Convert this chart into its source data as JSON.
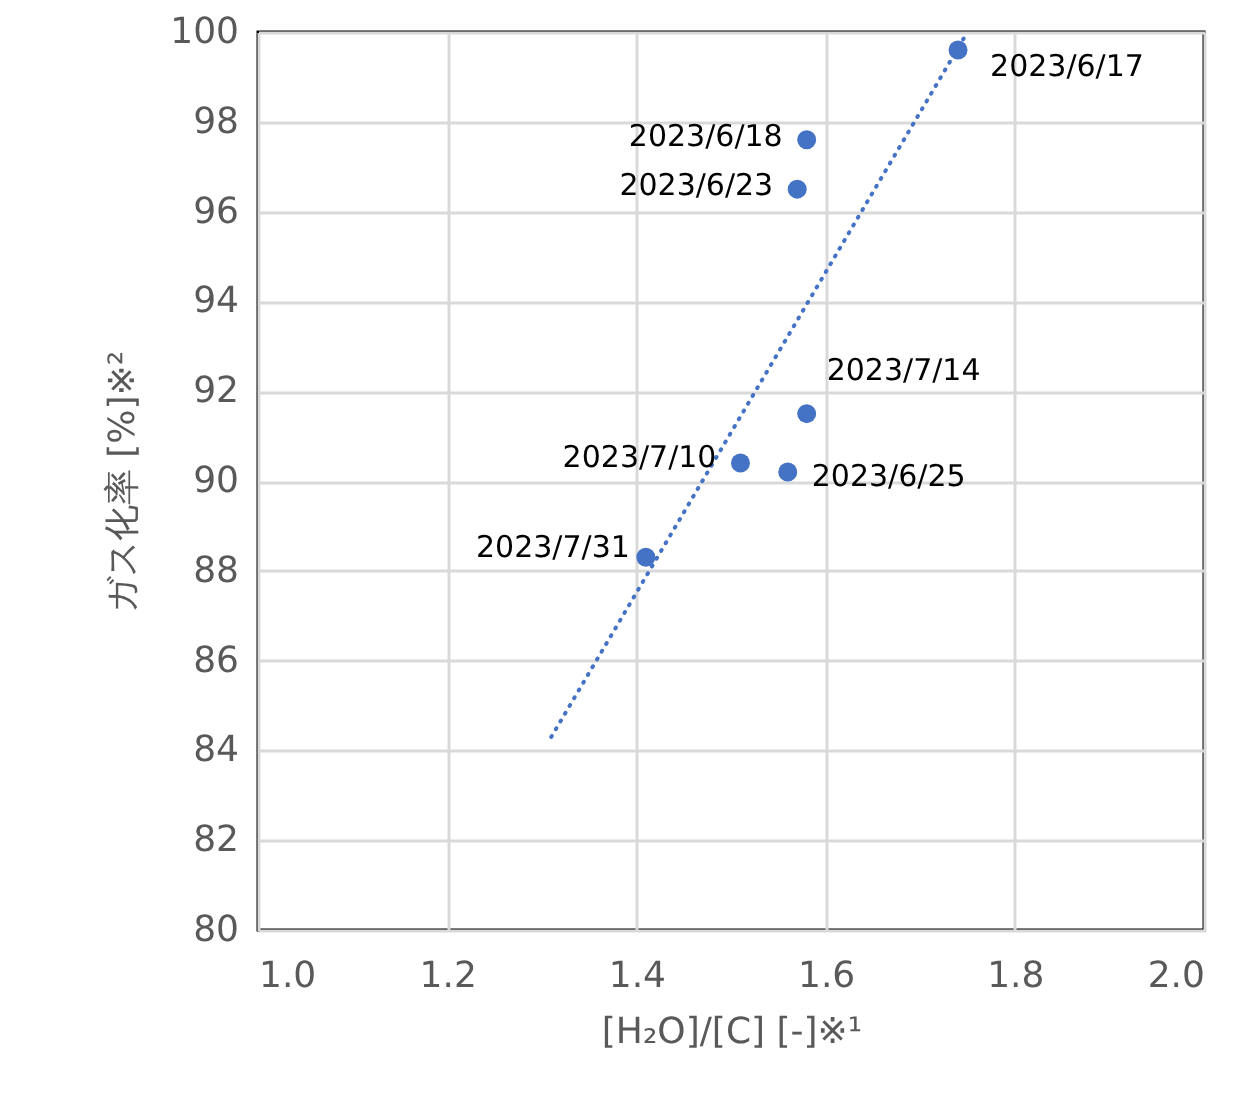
{
  "chart_data": {
    "type": "scatter",
    "xlabel": "[H₂O]/[C] [-]※¹",
    "ylabel": "ガス化率 [%]※²",
    "xlim": [
      1.0,
      2.0
    ],
    "xticks": [
      {
        "value": 1,
        "label": "1.0"
      },
      1.2,
      1.4,
      1.6,
      1.8,
      {
        "value": 2,
        "label": "2.0"
      }
    ],
    "ylim": [
      80,
      100
    ],
    "yticks": [
      80,
      82,
      84,
      86,
      88,
      90,
      92,
      94,
      96,
      98,
      100
    ],
    "grid": true,
    "marker": "circle",
    "series": [
      {
        "color": "#4472c4",
        "x": [
          1.74,
          1.58,
          1.57,
          1.58,
          1.51,
          1.56,
          1.41
        ],
        "values": [
          99.6,
          97.6,
          96.5,
          91.5,
          90.4,
          90.2,
          88.3
        ]
      },
      {
        "type": "line",
        "color": "#4472c4",
        "line_style": "dotted",
        "marker": "none",
        "x": [
          1.31,
          1.75
        ],
        "values": [
          84.3,
          100
        ]
      }
    ],
    "annotations": [
      {
        "text": "2023/6/17",
        "x": 1.74,
        "y": 99.6
      },
      {
        "text": "2023/6/18",
        "x": 1.58,
        "y": 97.6
      },
      {
        "text": "2023/6/23",
        "x": 1.57,
        "y": 96.5
      },
      {
        "text": "2023/7/14",
        "x": 1.58,
        "y": 91.5
      },
      {
        "text": "2023/7/10",
        "x": 1.51,
        "y": 90.4
      },
      {
        "text": "2023/6/25",
        "x": 1.56,
        "y": 90.2
      },
      {
        "text": "2023/7/31",
        "x": 1.41,
        "y": 88.3
      }
    ]
  }
}
